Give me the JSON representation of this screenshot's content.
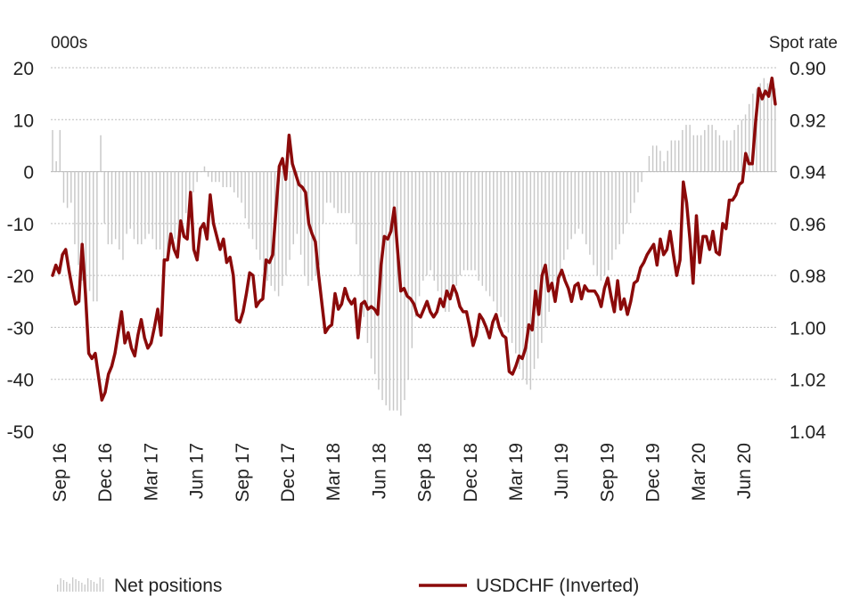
{
  "chart_data": {
    "type": "bar+line",
    "left_axis": {
      "unit": "000s",
      "ticks": [
        20,
        10,
        0,
        -10,
        -20,
        -30,
        -40,
        -50
      ],
      "range": [
        -50,
        20
      ]
    },
    "right_axis": {
      "unit": "Spot rate",
      "ticks": [
        "0.90",
        "0.92",
        "0.94",
        "0.96",
        "0.98",
        "1.00",
        "1.02",
        "1.04"
      ],
      "range": [
        0.9,
        1.04
      ],
      "inverted": true
    },
    "x_tick_labels": [
      "Sep 16",
      "Dec 16",
      "Mar 17",
      "Jun 17",
      "Sep 17",
      "Dec 17",
      "Mar 18",
      "Jun 18",
      "Sep 18",
      "Dec 18",
      "Mar 19",
      "Jun 19",
      "Sep 19",
      "Dec 19",
      "Mar 20",
      "Jun 20"
    ],
    "grid": true,
    "legend_position": "bottom",
    "series": [
      {
        "name": "Net positions",
        "type": "bar",
        "axis": "left",
        "color": "#c8c8c8",
        "values": [
          8,
          2,
          8,
          -6,
          -7,
          -6,
          -14,
          -18,
          -21,
          -24,
          -23,
          -25,
          -25,
          7,
          -10,
          -14,
          -14,
          -13,
          -15,
          -17,
          -12,
          -11,
          -13,
          -14,
          -14,
          -13,
          -12,
          -13,
          -15,
          -15,
          -17,
          -17,
          -14,
          -13,
          -12,
          -10,
          -8,
          -6,
          -4,
          -2,
          0,
          1,
          -1,
          -2,
          -2,
          -2,
          -3,
          -3,
          -3,
          -4,
          -5,
          -6,
          -9,
          -11,
          -13,
          -15,
          -17,
          -19,
          -21,
          -22,
          -23,
          -24,
          -22,
          -20,
          -17,
          -14,
          -12,
          -16,
          -20,
          -22,
          -21,
          -20,
          -18,
          -10,
          -6,
          -6,
          -7,
          -8,
          -8,
          -8,
          -8,
          -10,
          -14,
          -20,
          -28,
          -33,
          -36,
          -39,
          -42,
          -44,
          -45,
          -46,
          -46,
          -46,
          -47,
          -44,
          -40,
          -34,
          -28,
          -24,
          -21,
          -20,
          -19,
          -21,
          -23,
          -26,
          -27,
          -27,
          -24,
          -22,
          -20,
          -19,
          -19,
          -19,
          -19,
          -21,
          -22,
          -23,
          -24,
          -25,
          -27,
          -28,
          -29,
          -31,
          -33,
          -35,
          -38,
          -40,
          -41,
          -42,
          -38,
          -36,
          -33,
          -30,
          -27,
          -24,
          -21,
          -19,
          -17,
          -15,
          -13,
          -12,
          -11,
          -12,
          -14,
          -16,
          -18,
          -20,
          -21,
          -20,
          -19,
          -17,
          -15,
          -14,
          -12,
          -10,
          -8,
          -6,
          -4,
          -2,
          0,
          3,
          5,
          5,
          4,
          2,
          4,
          6,
          6,
          6,
          8,
          9,
          9,
          7,
          7,
          7,
          8,
          9,
          9,
          8,
          7,
          6,
          6,
          6,
          8,
          9,
          10,
          11,
          13,
          15,
          16,
          17,
          18,
          17,
          16,
          16
        ]
      },
      {
        "name": "USDCHF (Inverted)",
        "type": "line",
        "axis": "right",
        "color": "#8b0a0a",
        "values": [
          0.98,
          0.976,
          0.979,
          0.972,
          0.97,
          0.978,
          0.985,
          0.991,
          0.99,
          0.968,
          0.987,
          1.01,
          1.012,
          1.01,
          1.019,
          1.028,
          1.025,
          1.018,
          1.015,
          1.01,
          1.002,
          0.994,
          1.006,
          1.002,
          1.008,
          1.011,
          1.003,
          0.997,
          1.004,
          1.008,
          1.006,
          1.0,
          0.993,
          1.003,
          0.974,
          0.974,
          0.964,
          0.97,
          0.973,
          0.959,
          0.965,
          0.966,
          0.948,
          0.97,
          0.974,
          0.962,
          0.96,
          0.966,
          0.949,
          0.96,
          0.965,
          0.97,
          0.966,
          0.975,
          0.973,
          0.98,
          0.997,
          0.998,
          0.994,
          0.987,
          0.979,
          0.98,
          0.992,
          0.99,
          0.989,
          0.974,
          0.975,
          0.972,
          0.955,
          0.938,
          0.935,
          0.943,
          0.926,
          0.937,
          0.941,
          0.945,
          0.946,
          0.948,
          0.96,
          0.964,
          0.967,
          0.98,
          0.991,
          1.002,
          1.0,
          0.999,
          0.987,
          0.993,
          0.991,
          0.985,
          0.989,
          0.991,
          0.989,
          1.004,
          0.991,
          0.99,
          0.993,
          0.992,
          0.993,
          0.995,
          0.976,
          0.965,
          0.966,
          0.963,
          0.954,
          0.97,
          0.986,
          0.985,
          0.988,
          0.989,
          0.991,
          0.995,
          0.996,
          0.993,
          0.99,
          0.994,
          0.996,
          0.994,
          0.989,
          0.992,
          0.986,
          0.989,
          0.984,
          0.987,
          0.992,
          0.994,
          0.994,
          1.0,
          1.007,
          1.003,
          0.995,
          0.997,
          1.0,
          1.004,
          0.998,
          0.995,
          1.0,
          1.003,
          1.004,
          1.017,
          1.018,
          1.015,
          1.011,
          1.012,
          1.008,
          0.999,
          1.001,
          0.986,
          0.995,
          0.98,
          0.976,
          0.986,
          0.983,
          0.99,
          0.981,
          0.978,
          0.982,
          0.985,
          0.99,
          0.984,
          0.983,
          0.989,
          0.984,
          0.986,
          0.986,
          0.986,
          0.988,
          0.992,
          0.985,
          0.981,
          0.988,
          0.994,
          0.982,
          0.993,
          0.989,
          0.995,
          0.99,
          0.983,
          0.982,
          0.977,
          0.975,
          0.972,
          0.97,
          0.968,
          0.976,
          0.966,
          0.972,
          0.97,
          0.963,
          0.972,
          0.98,
          0.974,
          0.944,
          0.952,
          0.966,
          0.983,
          0.957,
          0.975,
          0.965,
          0.965,
          0.97,
          0.963,
          0.971,
          0.972,
          0.96,
          0.962,
          0.951,
          0.951,
          0.949,
          0.945,
          0.944,
          0.933,
          0.937,
          0.937,
          0.921,
          0.908,
          0.912,
          0.909,
          0.911,
          0.904,
          0.914
        ]
      }
    ]
  },
  "legend": {
    "net_positions": "Net positions",
    "usdchf": "USDCHF (Inverted)"
  }
}
